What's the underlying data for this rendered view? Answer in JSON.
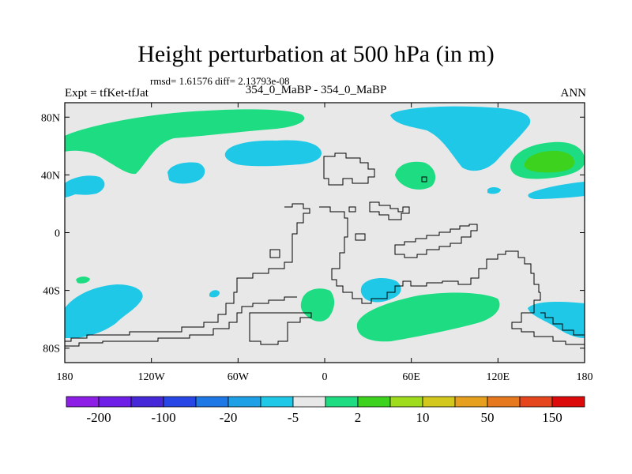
{
  "title": "Height perturbation at 500 hPa (in m)",
  "stats": "rmsd= 1.61576  diff= 2.13793e-08",
  "left_label": "Expt = tfKet-tfJat",
  "center_label": "354_0_MaBP - 354_0_MaBP",
  "right_label": "ANN",
  "map": {
    "lon_ticks": [
      {
        "value": -180,
        "label": "180"
      },
      {
        "value": -120,
        "label": "120W"
      },
      {
        "value": -60,
        "label": "60W"
      },
      {
        "value": 0,
        "label": "0"
      },
      {
        "value": 60,
        "label": "60E"
      },
      {
        "value": 120,
        "label": "120E"
      },
      {
        "value": 180,
        "label": "180"
      }
    ],
    "lat_ticks": [
      {
        "value": 80,
        "label": "80N"
      },
      {
        "value": 40,
        "label": "40N"
      },
      {
        "value": 0,
        "label": "0"
      },
      {
        "value": -40,
        "label": "40S"
      },
      {
        "value": -80,
        "label": "80S"
      }
    ],
    "background_color": "#e8e8e8"
  },
  "colorbar": {
    "colors": [
      "#8c1ee6",
      "#6e1ee6",
      "#4628d8",
      "#2846e6",
      "#1e78e6",
      "#1ea0e6",
      "#1ec8e6",
      "#e8e8e8",
      "#1edc82",
      "#3cd21e",
      "#a0dc1e",
      "#d2c81e",
      "#e6a01e",
      "#e6781e",
      "#e6461e",
      "#dc0a0a"
    ],
    "labels": [
      "-200",
      "-100",
      "-20",
      "-5",
      "2",
      "10",
      "50",
      "150"
    ]
  }
}
